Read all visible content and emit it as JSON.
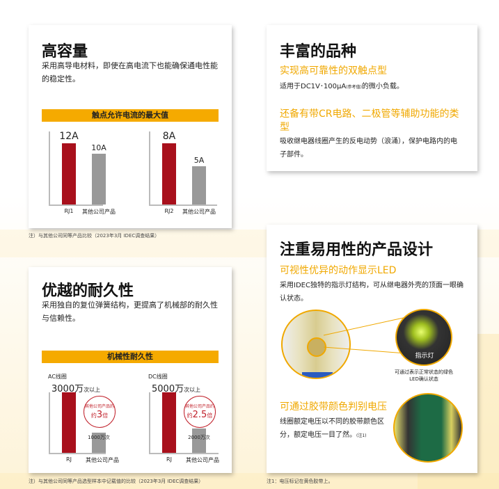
{
  "card_current": {
    "title": "高容量",
    "desc": "采用高导电材料，即使在高电流下也能确保通电性能的稳定性。",
    "chart_title": "触点允许电流的最大值",
    "chart_data": [
      {
        "type": "bar",
        "categories": [
          "RJ1",
          "其他公司产品"
        ],
        "values": [
          12,
          10
        ],
        "labels": [
          "12A",
          "10A"
        ],
        "unit": "A"
      },
      {
        "type": "bar",
        "categories": [
          "RJ2",
          "其他公司产品"
        ],
        "values": [
          8,
          5
        ],
        "labels": [
          "8A",
          "5A"
        ],
        "unit": "A"
      }
    ],
    "note": "注）与其他公司同等产品比较（2023年3月 IDEC调查结果）"
  },
  "card_variety": {
    "title": "丰富的品种",
    "sub1": "实现高可靠性的双触点型",
    "desc1_a": "适用于DC1V･100µA",
    "desc1_ref": "(参考值)",
    "desc1_b": "的微小负载。",
    "sub2": "还备有带CR电路、二极管等辅助功能的类型",
    "desc2": "吸收继电器线圈产生的反电动势（浪涌），保护电路内的电子部件。"
  },
  "card_durability": {
    "title": "优越的耐久性",
    "desc": "采用独自的复位弹簧结构，更提高了机械部的耐久性与信赖性。",
    "chart_title": "机械性耐久性",
    "chart_data": [
      {
        "type": "bar",
        "series_label": "AC线圈",
        "categories": [
          "RJ",
          "其他公司产品"
        ],
        "values": [
          3000,
          1000
        ],
        "unit": "万次",
        "top_value": "3000万",
        "top_suffix": "次以上",
        "other_label": "1000万次",
        "badge_top": "其他公司产品的",
        "badge_pre": "约",
        "badge_num": "3",
        "badge_post": "倍"
      },
      {
        "type": "bar",
        "series_label": "DC线圈",
        "categories": [
          "RJ",
          "其他公司产品"
        ],
        "values": [
          5000,
          2000
        ],
        "unit": "万次",
        "top_value": "5000万",
        "top_suffix": "次以上",
        "other_label": "2000万次",
        "badge_top": "其他公司产品约",
        "badge_pre": "约",
        "badge_num": "2.5",
        "badge_post": "倍"
      }
    ],
    "note": "注）与其他公司同等产品选型样本中记载值的比较（2023年3月 IDEC调查结果）"
  },
  "card_usability": {
    "title": "注重易用性的产品设计",
    "sub1": "可视性优异的动作显示LED",
    "desc1": "采用IDEC独特的指示灯结构，可从继电器外壳的顶面一眼确认状态。",
    "photo_label": "指示灯",
    "caption": "可通过表示正常状态的绿色LED确认状态",
    "sub2": "可通过胶带颜色判别电压",
    "desc2": "线圈额定电压以不同的胶带颜色区分，额定电压一目了然。",
    "desc2_note": "(注1)",
    "note": "注1：电压标记在黄色胶带上。"
  },
  "colors": {
    "accent": "#f5aa00",
    "rj": "#a8101c",
    "other": "#999999"
  }
}
